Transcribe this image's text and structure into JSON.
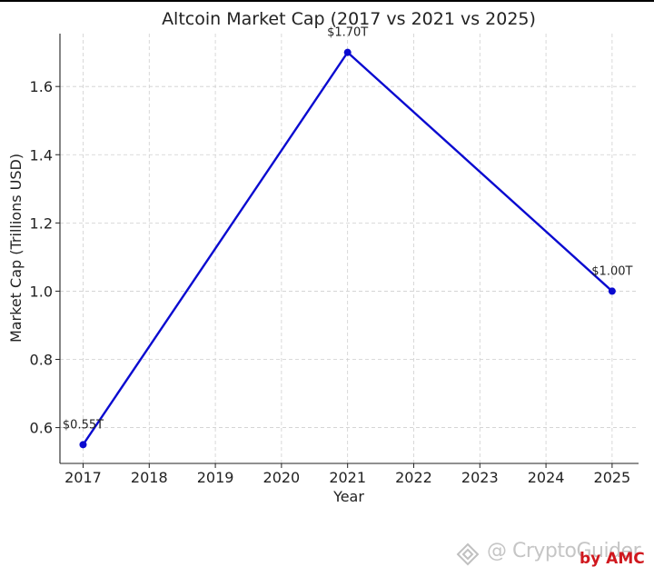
{
  "chart_data": {
    "type": "line",
    "title": "Altcoin Market Cap (2017 vs 2021 vs 2025)",
    "xlabel": "Year",
    "ylabel": "Market Cap (Trillions USD)",
    "x": [
      2017,
      2021,
      2025
    ],
    "x_ticks": [
      "2017",
      "2018",
      "2019",
      "2020",
      "2021",
      "2022",
      "2023",
      "2024",
      "2025"
    ],
    "y_ticks": [
      "0.6",
      "0.8",
      "1.0",
      "1.2",
      "1.4",
      "1.6"
    ],
    "xlim": [
      2016.65,
      2025.4
    ],
    "ylim": [
      0.495,
      1.755
    ],
    "grid": true,
    "series": [
      {
        "values": [
          0.55,
          1.7,
          1.0
        ],
        "color": "#0a0ad0"
      }
    ],
    "data_labels": [
      "$0.55T",
      "$1.70T",
      "$1.00T"
    ]
  },
  "watermark": {
    "text": "@ CryptoGuider",
    "byline": "by AMC",
    "byline_color": "#d0181e",
    "icon": "binance-diamond-icon"
  }
}
